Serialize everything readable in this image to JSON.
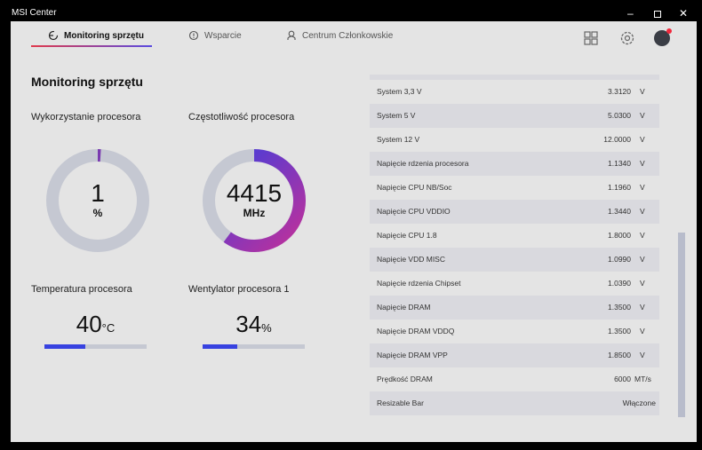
{
  "window": {
    "title": "MSI Center"
  },
  "tabs": [
    {
      "label": "Monitoring sprzętu"
    },
    {
      "label": "Wsparcie"
    },
    {
      "label": "Centrum Członkowskie"
    }
  ],
  "page_title": "Monitoring sprzętu",
  "cpu_usage": {
    "label": "Wykorzystanie procesora",
    "value": "1",
    "unit": "%",
    "fraction": 0.01
  },
  "cpu_freq": {
    "label": "Częstotliwość procesora",
    "value": "4415",
    "unit": "MHz",
    "fraction": 0.6
  },
  "cpu_temp": {
    "label": "Temperatura procesora",
    "value": "40",
    "unit": "°C",
    "fraction": 0.4
  },
  "cpu_fan": {
    "label": "Wentylator procesora 1",
    "value": "34",
    "unit": "%",
    "fraction": 0.34
  },
  "rows": [
    {
      "name": "",
      "value": "",
      "unit": ""
    },
    {
      "name": "System 3,3 V",
      "value": "3.3120",
      "unit": "V"
    },
    {
      "name": "System 5 V",
      "value": "5.0300",
      "unit": "V"
    },
    {
      "name": "System 12 V",
      "value": "12.0000",
      "unit": "V"
    },
    {
      "name": "Napięcie rdzenia procesora",
      "value": "1.1340",
      "unit": "V"
    },
    {
      "name": "Napięcie CPU NB/Soc",
      "value": "1.1960",
      "unit": "V"
    },
    {
      "name": "Napięcie CPU VDDIO",
      "value": "1.3440",
      "unit": "V"
    },
    {
      "name": "Napięcie CPU 1.8",
      "value": "1.8000",
      "unit": "V"
    },
    {
      "name": "Napięcie VDD MISC",
      "value": "1.0990",
      "unit": "V"
    },
    {
      "name": "Napięcie rdzenia Chipset",
      "value": "1.0390",
      "unit": "V"
    },
    {
      "name": "Napięcie DRAM",
      "value": "1.3500",
      "unit": "V"
    },
    {
      "name": "Napięcie DRAM VDDQ",
      "value": "1.3500",
      "unit": "V"
    },
    {
      "name": "Napięcie DRAM VPP",
      "value": "1.8500",
      "unit": "V"
    },
    {
      "name": "Prędkość DRAM",
      "value": "6000",
      "unit": "MT/s"
    },
    {
      "name": "Resizable Bar",
      "value": "Włączone",
      "unit": ""
    }
  ],
  "colors": {
    "accent": "#3742e0",
    "track": "#c5c8d2",
    "gradient_start": "#c0309a",
    "gradient_end": "#3a3fe0"
  }
}
